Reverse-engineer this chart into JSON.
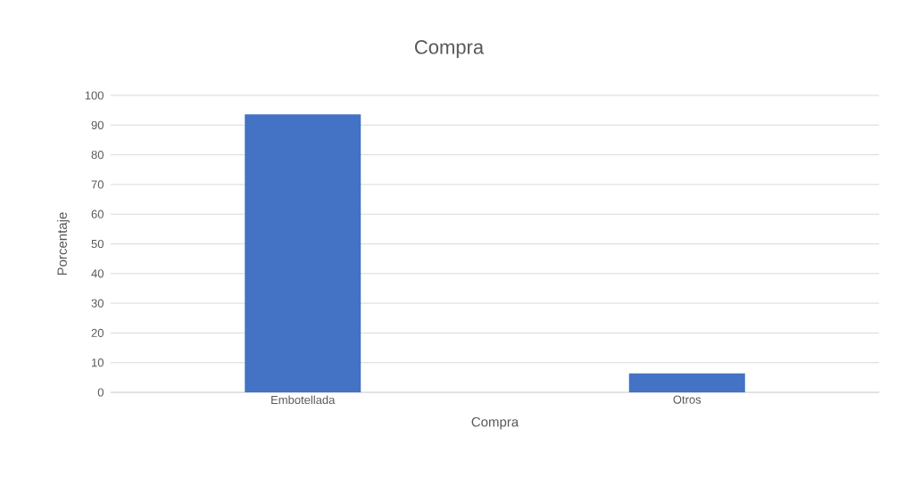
{
  "chart_data": {
    "type": "bar",
    "title": "Compra",
    "xlabel": "Compra",
    "ylabel": "Porcentaje",
    "categories": [
      "Embotellada",
      "Otros"
    ],
    "values": [
      93.6,
      6.4
    ],
    "color": "#4472c4",
    "ylim": [
      0,
      100
    ],
    "yticks": [
      0,
      10,
      20,
      30,
      40,
      50,
      60,
      70,
      80,
      90,
      100
    ],
    "grid": "y"
  }
}
